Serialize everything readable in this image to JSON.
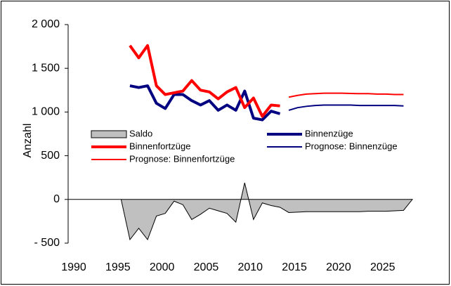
{
  "chart_data": {
    "type": "line",
    "y_label": "Anzahl",
    "x": [
      1990,
      1991,
      1992,
      1993,
      1994,
      1995,
      1996,
      1997,
      1998,
      1999,
      2000,
      2001,
      2002,
      2003,
      2004,
      2005,
      2006,
      2007,
      2008,
      2009,
      2010,
      2011,
      2012,
      2013,
      2014,
      2015,
      2016,
      2017,
      2018,
      2019,
      2020,
      2021,
      2022,
      2023,
      2024,
      2025,
      2026,
      2027,
      2028,
      2029
    ],
    "xlim": [
      1990,
      2029
    ],
    "xticks": [
      1990,
      1995,
      2000,
      2005,
      2010,
      2015,
      2020,
      2025
    ],
    "ylim": [
      -500,
      2000
    ],
    "yticks": [
      {
        "value": -500,
        "label": "- 500"
      },
      0,
      500,
      {
        "value": 1000,
        "label": "1 000"
      },
      {
        "value": 1500,
        "label": "1 500"
      },
      {
        "value": 2000,
        "label": "2 000"
      }
    ],
    "series": [
      {
        "name": "Saldo",
        "style": "area",
        "color": "#c0c0c0",
        "values": [
          0,
          0,
          0,
          0,
          0,
          0,
          0,
          -460,
          -330,
          -460,
          -190,
          -160,
          -20,
          -60,
          -230,
          -170,
          -100,
          -130,
          -160,
          -260,
          190,
          -230,
          -40,
          -70,
          -90,
          -150,
          -145,
          -140,
          -140,
          -140,
          -140,
          -140,
          -140,
          -140,
          -135,
          -135,
          -135,
          -130,
          -125,
          0
        ]
      },
      {
        "name": "Binnenzüge",
        "style": "thick",
        "color": "#000080",
        "values": [
          null,
          null,
          null,
          null,
          null,
          null,
          null,
          1300,
          1280,
          1300,
          1100,
          1040,
          1200,
          1200,
          1130,
          1080,
          1130,
          1020,
          1080,
          1020,
          1240,
          930,
          910,
          1010,
          980,
          null,
          null,
          null,
          null,
          null,
          null,
          null,
          null,
          null,
          null,
          null,
          null,
          null,
          null,
          null
        ]
      },
      {
        "name": "Binnenfortzüge",
        "style": "thick",
        "color": "#ff0000",
        "values": [
          null,
          null,
          null,
          null,
          null,
          null,
          null,
          1760,
          1620,
          1760,
          1300,
          1200,
          1220,
          1240,
          1360,
          1250,
          1230,
          1150,
          1230,
          1280,
          1050,
          1160,
          950,
          1080,
          1070,
          null,
          null,
          null,
          null,
          null,
          null,
          null,
          null,
          null,
          null,
          null,
          null,
          null,
          null,
          null
        ]
      },
      {
        "name": "Prognose: Binnenzüge",
        "style": "thin",
        "color": "#000080",
        "values": [
          null,
          null,
          null,
          null,
          null,
          null,
          null,
          null,
          null,
          null,
          null,
          null,
          null,
          null,
          null,
          null,
          null,
          null,
          null,
          null,
          null,
          null,
          null,
          null,
          null,
          1020,
          1050,
          1065,
          1075,
          1080,
          1080,
          1080,
          1080,
          1075,
          1075,
          1075,
          1075,
          1075,
          1070,
          null
        ]
      },
      {
        "name": "Prognose: Binnenfortzüge",
        "style": "thin",
        "color": "#ff0000",
        "values": [
          null,
          null,
          null,
          null,
          null,
          null,
          null,
          null,
          null,
          null,
          null,
          null,
          null,
          null,
          null,
          null,
          null,
          null,
          null,
          null,
          null,
          null,
          null,
          null,
          null,
          1170,
          1190,
          1205,
          1210,
          1215,
          1215,
          1215,
          1212,
          1210,
          1210,
          1205,
          1205,
          1200,
          1200,
          null
        ]
      }
    ]
  }
}
